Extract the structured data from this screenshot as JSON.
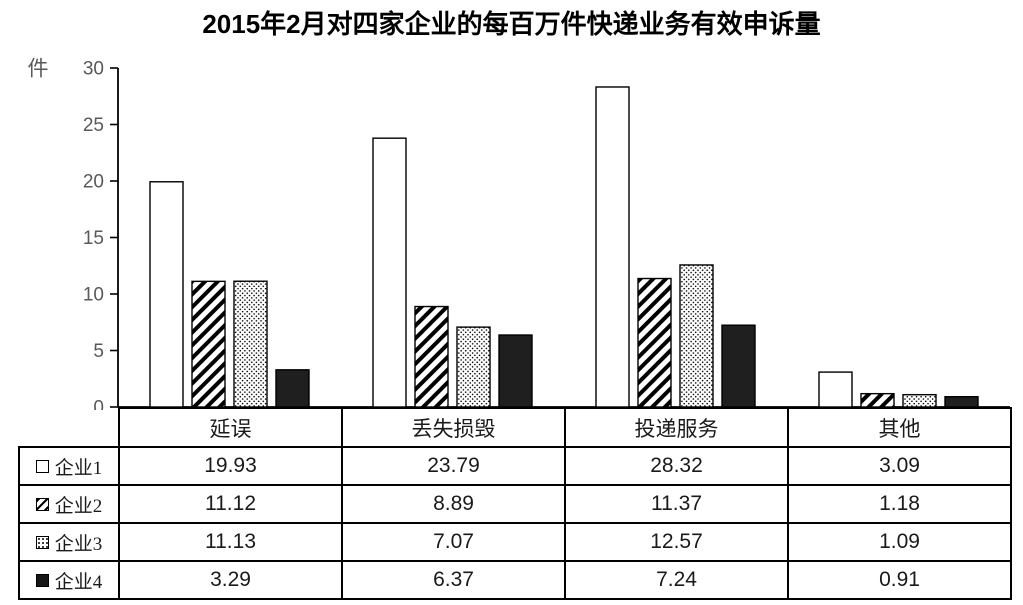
{
  "title": "2015年2月对四家企业的每百万件快递业务有效申诉量",
  "chart_data": {
    "type": "bar",
    "title": "2015年2月对四家企业的每百万件快递业务有效申诉量",
    "unit_label": "件",
    "categories": [
      "延误",
      "丢失损毁",
      "投递服务",
      "其他"
    ],
    "series": [
      {
        "name": "企业1",
        "pattern": "white",
        "values": [
          19.93,
          23.79,
          28.32,
          3.09
        ]
      },
      {
        "name": "企业2",
        "pattern": "diagonal-hatch",
        "values": [
          11.12,
          8.89,
          11.37,
          1.18
        ]
      },
      {
        "name": "企业3",
        "pattern": "dots",
        "values": [
          11.13,
          7.07,
          12.57,
          1.09
        ]
      },
      {
        "name": "企业4",
        "pattern": "solid-black",
        "values": [
          3.29,
          6.37,
          7.24,
          0.91
        ]
      }
    ],
    "ylim": [
      0,
      30
    ],
    "ytick_step": 5,
    "ytick_labels": [
      "0",
      "5",
      "10",
      "15",
      "20",
      "25",
      "30"
    ],
    "grid": false,
    "legend_position": "table-rows-left"
  },
  "axis": {
    "unit_label": "件",
    "label_color": "#595959",
    "line_color": "#000000"
  },
  "table": {
    "headers": [
      "延误",
      "丢失损毁",
      "投递服务",
      "其他"
    ],
    "rows": [
      {
        "legend": "企业1",
        "swatch": "white",
        "values": [
          "19.93",
          "23.79",
          "28.32",
          "3.09"
        ]
      },
      {
        "legend": "企业2",
        "swatch": "diagonal-hatch",
        "values": [
          "11.12",
          "8.89",
          "11.37",
          "1.18"
        ]
      },
      {
        "legend": "企业3",
        "swatch": "dots",
        "values": [
          "11.13",
          "7.07",
          "12.57",
          "1.09"
        ]
      },
      {
        "legend": "企业4",
        "swatch": "solid-black",
        "values": [
          "3.29",
          "6.37",
          "7.24",
          "0.91"
        ]
      }
    ]
  },
  "colors": {
    "background": "#ffffff",
    "title": "#000000",
    "axis_labels": "#595959",
    "lines": "#000000",
    "table_text": "#1a1a1a",
    "solid_bar": "#1f1f1f",
    "bar_outline": "#000000"
  }
}
